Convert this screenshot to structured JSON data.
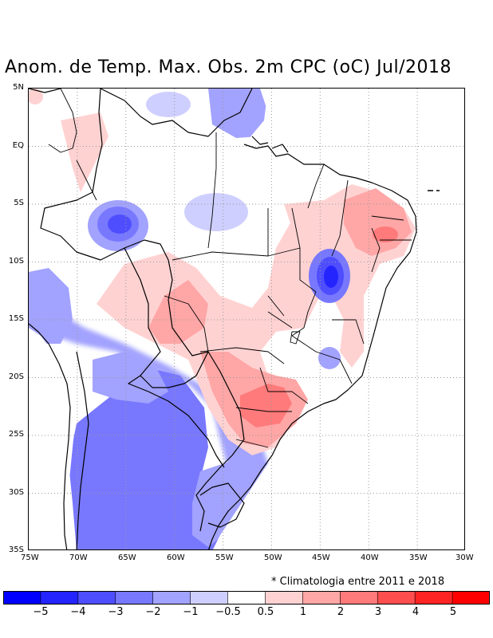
{
  "title": "Anom. de Temp. Max. Obs. 2m CPC (oC) Jul/2018",
  "note": "* Climatologia entre 2011 e 2018",
  "map": {
    "lat_labels": [
      "5N",
      "EQ",
      "5S",
      "10S",
      "15S",
      "20S",
      "25S",
      "30S",
      "35S"
    ],
    "lon_labels": [
      "75W",
      "70W",
      "65W",
      "60W",
      "55W",
      "50W",
      "45W",
      "40W",
      "35W",
      "30W"
    ],
    "lat_values": [
      5,
      0,
      -5,
      -10,
      -15,
      -20,
      -25,
      -30,
      -35
    ],
    "lon_values": [
      -75,
      -70,
      -65,
      -60,
      -55,
      -50,
      -45,
      -40,
      -35,
      -30
    ],
    "extent": {
      "lon_min": -75,
      "lon_max": -30,
      "lat_min": -35,
      "lat_max": 5
    }
  },
  "colorbar": {
    "colors": [
      "#0000ff",
      "#2424ff",
      "#4e4eff",
      "#7878ff",
      "#a2a2ff",
      "#cfcfff",
      "#ffffff",
      "#ffd2d2",
      "#ffa6a6",
      "#ff7a7a",
      "#ff4e4e",
      "#ff2424",
      "#ff0000"
    ],
    "labels": [
      "−5",
      "−4",
      "−3",
      "−2",
      "−1",
      "−0.5",
      "0.5",
      "1",
      "2",
      "3",
      "4",
      "5"
    ]
  },
  "anomaly_regions": [
    {
      "name": "western-amazon-cold-core",
      "value": -3,
      "lon": -65.5,
      "lat": -6.5
    },
    {
      "name": "bahia-cold-core",
      "value": -4,
      "lon": -44.5,
      "lat": -11
    },
    {
      "name": "pernambuco-warm-core",
      "value": 3,
      "lon": -38,
      "lat": -7.5
    },
    {
      "name": "parana-warm-core",
      "value": 3,
      "lon": -51,
      "lat": -22.5
    },
    {
      "name": "argentina-cold-region",
      "value": -2,
      "lon": -62,
      "lat": -26
    }
  ]
}
